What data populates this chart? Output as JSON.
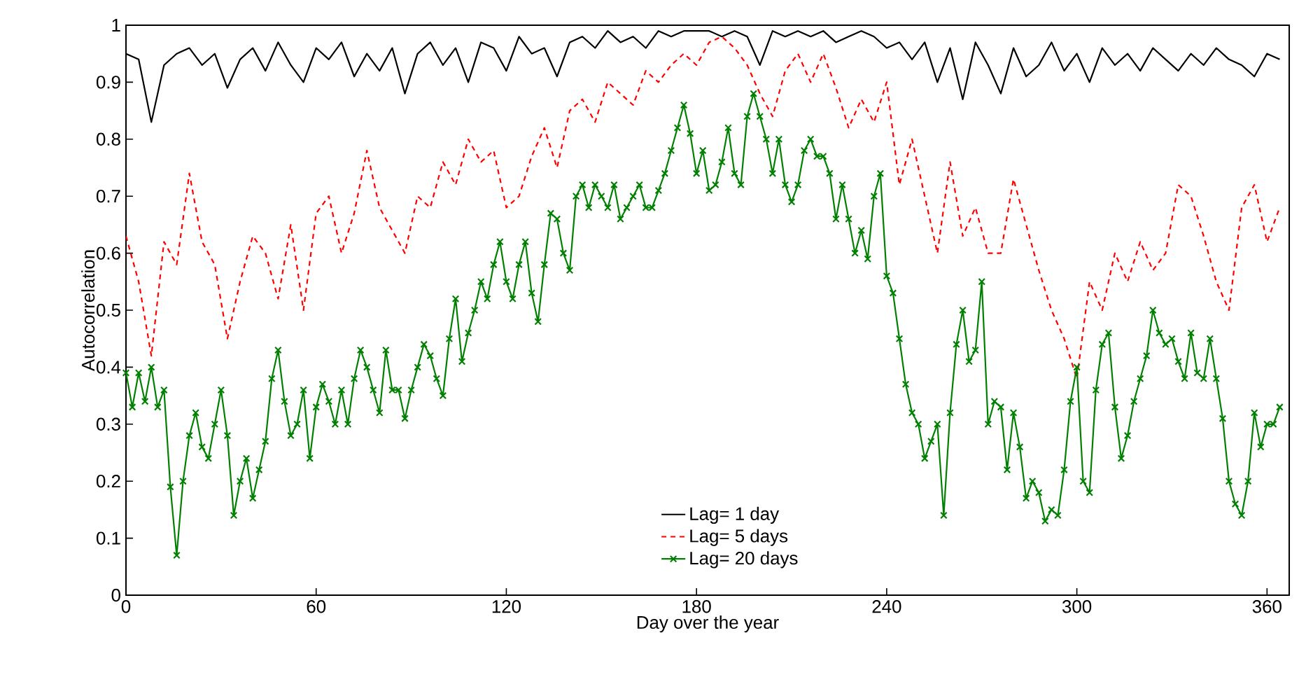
{
  "chart_data": {
    "type": "line",
    "xlabel": "Day over the year",
    "ylabel": "Autocorrelation",
    "xlim": [
      0,
      367
    ],
    "ylim": [
      0,
      1
    ],
    "xticks": [
      0,
      60,
      120,
      180,
      240,
      300,
      360
    ],
    "yticks": [
      0,
      0.1,
      0.2,
      0.3,
      0.4,
      0.5,
      0.6,
      0.7,
      0.8,
      0.9,
      1
    ],
    "grid": false,
    "legend": "bottom",
    "series": [
      {
        "name": "Lag= 1 day",
        "color": "#000000",
        "line_style": "solid",
        "marker": "none",
        "x": [
          0,
          4,
          8,
          12,
          16,
          20,
          24,
          28,
          32,
          36,
          40,
          44,
          48,
          52,
          56,
          60,
          64,
          68,
          72,
          76,
          80,
          84,
          88,
          92,
          96,
          100,
          104,
          108,
          112,
          116,
          120,
          124,
          128,
          132,
          136,
          140,
          144,
          148,
          152,
          156,
          160,
          164,
          168,
          172,
          176,
          180,
          184,
          188,
          192,
          196,
          200,
          204,
          208,
          212,
          216,
          220,
          224,
          228,
          232,
          236,
          240,
          244,
          248,
          252,
          256,
          260,
          264,
          268,
          272,
          276,
          280,
          284,
          288,
          292,
          296,
          300,
          304,
          308,
          312,
          316,
          320,
          324,
          328,
          332,
          336,
          340,
          344,
          348,
          352,
          356,
          360,
          364
        ],
        "values": [
          0.95,
          0.94,
          0.83,
          0.93,
          0.95,
          0.96,
          0.93,
          0.95,
          0.89,
          0.94,
          0.96,
          0.92,
          0.97,
          0.93,
          0.9,
          0.96,
          0.94,
          0.97,
          0.91,
          0.95,
          0.92,
          0.96,
          0.88,
          0.95,
          0.97,
          0.93,
          0.96,
          0.9,
          0.97,
          0.96,
          0.92,
          0.98,
          0.95,
          0.96,
          0.91,
          0.97,
          0.98,
          0.96,
          0.99,
          0.97,
          0.98,
          0.96,
          0.99,
          0.98,
          0.99,
          0.99,
          0.99,
          0.98,
          0.99,
          0.98,
          0.93,
          0.99,
          0.98,
          0.99,
          0.98,
          0.99,
          0.97,
          0.98,
          0.99,
          0.98,
          0.96,
          0.97,
          0.94,
          0.97,
          0.9,
          0.96,
          0.87,
          0.97,
          0.93,
          0.88,
          0.96,
          0.91,
          0.93,
          0.97,
          0.92,
          0.95,
          0.9,
          0.96,
          0.93,
          0.95,
          0.92,
          0.96,
          0.94,
          0.92,
          0.95,
          0.93,
          0.96,
          0.94,
          0.93,
          0.91,
          0.95,
          0.94
        ]
      },
      {
        "name": "Lag= 5 days",
        "color": "#ff0000",
        "line_style": "dashed",
        "marker": "none",
        "x": [
          0,
          4,
          8,
          12,
          16,
          20,
          24,
          28,
          32,
          36,
          40,
          44,
          48,
          52,
          56,
          60,
          64,
          68,
          72,
          76,
          80,
          84,
          88,
          92,
          96,
          100,
          104,
          108,
          112,
          116,
          120,
          124,
          128,
          132,
          136,
          140,
          144,
          148,
          152,
          156,
          160,
          164,
          168,
          172,
          176,
          180,
          184,
          188,
          192,
          196,
          200,
          204,
          208,
          212,
          216,
          220,
          224,
          228,
          232,
          236,
          240,
          244,
          248,
          252,
          256,
          260,
          264,
          268,
          272,
          276,
          280,
          284,
          288,
          292,
          296,
          300,
          304,
          308,
          312,
          316,
          320,
          324,
          328,
          332,
          336,
          340,
          344,
          348,
          352,
          356,
          360,
          364
        ],
        "values": [
          0.63,
          0.55,
          0.42,
          0.62,
          0.58,
          0.74,
          0.62,
          0.58,
          0.45,
          0.55,
          0.63,
          0.6,
          0.52,
          0.65,
          0.5,
          0.67,
          0.7,
          0.6,
          0.67,
          0.78,
          0.68,
          0.64,
          0.6,
          0.7,
          0.68,
          0.76,
          0.72,
          0.8,
          0.76,
          0.78,
          0.68,
          0.7,
          0.77,
          0.82,
          0.75,
          0.85,
          0.87,
          0.83,
          0.9,
          0.88,
          0.86,
          0.92,
          0.9,
          0.93,
          0.95,
          0.93,
          0.97,
          0.98,
          0.96,
          0.93,
          0.88,
          0.84,
          0.92,
          0.95,
          0.9,
          0.95,
          0.89,
          0.82,
          0.87,
          0.83,
          0.9,
          0.72,
          0.8,
          0.7,
          0.6,
          0.76,
          0.63,
          0.68,
          0.6,
          0.6,
          0.73,
          0.65,
          0.57,
          0.5,
          0.45,
          0.38,
          0.55,
          0.5,
          0.6,
          0.55,
          0.62,
          0.57,
          0.6,
          0.72,
          0.7,
          0.63,
          0.55,
          0.5,
          0.68,
          0.72,
          0.62,
          0.68
        ]
      },
      {
        "name": "Lag= 20 days",
        "color": "#008000",
        "line_style": "solid",
        "marker": "cross",
        "x": [
          0,
          2,
          4,
          6,
          8,
          10,
          12,
          14,
          16,
          18,
          20,
          22,
          24,
          26,
          28,
          30,
          32,
          34,
          36,
          38,
          40,
          42,
          44,
          46,
          48,
          50,
          52,
          54,
          56,
          58,
          60,
          62,
          64,
          66,
          68,
          70,
          72,
          74,
          76,
          78,
          80,
          82,
          84,
          86,
          88,
          90,
          92,
          94,
          96,
          98,
          100,
          102,
          104,
          106,
          108,
          110,
          112,
          114,
          116,
          118,
          120,
          122,
          124,
          126,
          128,
          130,
          132,
          134,
          136,
          138,
          140,
          142,
          144,
          146,
          148,
          150,
          152,
          154,
          156,
          158,
          160,
          162,
          164,
          166,
          168,
          170,
          172,
          174,
          176,
          178,
          180,
          182,
          184,
          186,
          188,
          190,
          192,
          194,
          196,
          198,
          200,
          202,
          204,
          206,
          208,
          210,
          212,
          214,
          216,
          218,
          220,
          222,
          224,
          226,
          228,
          230,
          232,
          234,
          236,
          238,
          240,
          242,
          244,
          246,
          248,
          250,
          252,
          254,
          256,
          258,
          260,
          262,
          264,
          266,
          268,
          270,
          272,
          274,
          276,
          278,
          280,
          282,
          284,
          286,
          288,
          290,
          292,
          294,
          296,
          298,
          300,
          302,
          304,
          306,
          308,
          310,
          312,
          314,
          316,
          318,
          320,
          322,
          324,
          326,
          328,
          330,
          332,
          334,
          336,
          338,
          340,
          342,
          344,
          346,
          348,
          350,
          352,
          354,
          356,
          358,
          360,
          362,
          364
        ],
        "values": [
          0.39,
          0.33,
          0.39,
          0.34,
          0.4,
          0.33,
          0.36,
          0.19,
          0.07,
          0.2,
          0.28,
          0.32,
          0.26,
          0.24,
          0.3,
          0.36,
          0.28,
          0.14,
          0.2,
          0.24,
          0.17,
          0.22,
          0.27,
          0.38,
          0.43,
          0.34,
          0.28,
          0.3,
          0.36,
          0.24,
          0.33,
          0.37,
          0.34,
          0.3,
          0.36,
          0.3,
          0.38,
          0.43,
          0.4,
          0.36,
          0.32,
          0.43,
          0.36,
          0.36,
          0.31,
          0.36,
          0.4,
          0.44,
          0.42,
          0.38,
          0.35,
          0.45,
          0.52,
          0.41,
          0.46,
          0.5,
          0.55,
          0.52,
          0.58,
          0.62,
          0.55,
          0.52,
          0.58,
          0.62,
          0.53,
          0.48,
          0.58,
          0.67,
          0.66,
          0.6,
          0.57,
          0.7,
          0.72,
          0.68,
          0.72,
          0.7,
          0.68,
          0.72,
          0.66,
          0.68,
          0.7,
          0.72,
          0.68,
          0.68,
          0.71,
          0.74,
          0.78,
          0.82,
          0.86,
          0.81,
          0.74,
          0.78,
          0.71,
          0.72,
          0.76,
          0.82,
          0.74,
          0.72,
          0.84,
          0.88,
          0.84,
          0.8,
          0.74,
          0.8,
          0.72,
          0.69,
          0.72,
          0.78,
          0.8,
          0.77,
          0.77,
          0.74,
          0.66,
          0.72,
          0.66,
          0.6,
          0.64,
          0.59,
          0.7,
          0.74,
          0.56,
          0.53,
          0.45,
          0.37,
          0.32,
          0.3,
          0.24,
          0.27,
          0.3,
          0.14,
          0.32,
          0.44,
          0.5,
          0.41,
          0.43,
          0.55,
          0.3,
          0.34,
          0.33,
          0.22,
          0.32,
          0.26,
          0.17,
          0.2,
          0.18,
          0.13,
          0.15,
          0.14,
          0.22,
          0.34,
          0.4,
          0.2,
          0.18,
          0.36,
          0.44,
          0.46,
          0.33,
          0.24,
          0.28,
          0.34,
          0.38,
          0.42,
          0.5,
          0.46,
          0.44,
          0.45,
          0.41,
          0.38,
          0.46,
          0.39,
          0.38,
          0.45,
          0.38,
          0.31,
          0.2,
          0.16,
          0.14,
          0.2,
          0.32,
          0.26,
          0.3,
          0.3,
          0.33
        ]
      }
    ]
  }
}
